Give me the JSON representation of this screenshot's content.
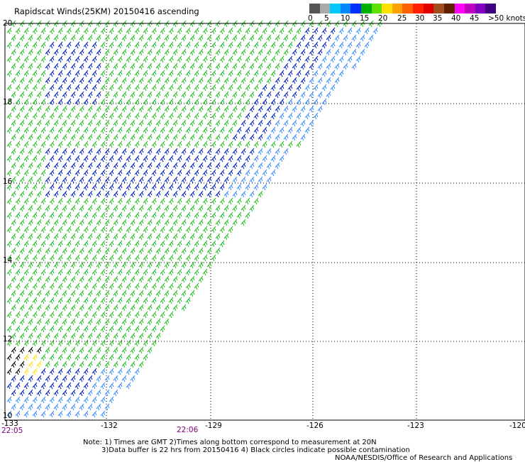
{
  "title": "Rapidscat Winds(25KM) 20150416 ascending",
  "colors": {
    "green": "#20c020",
    "blue": "#0020c0",
    "lightblue": "#3a8cff",
    "yellow": "#ffe000",
    "black": "#000000"
  },
  "color_scale": {
    "swatches": [
      "#555555",
      "#aaaaaa",
      "#00c8ff",
      "#0088ff",
      "#0030ff",
      "#00b000",
      "#60e000",
      "#ffe000",
      "#ffa000",
      "#ff6000",
      "#ff2000",
      "#e00000",
      "#a05020",
      "#602000",
      "#ff00ff",
      "#c000c0",
      "#8000c0",
      "#400080"
    ],
    "labels": [
      "0",
      "5",
      "10",
      "15",
      "20",
      "25",
      "30",
      "35",
      "40",
      "45",
      ">50 knots"
    ]
  },
  "axes": {
    "lat_labels": [
      "20",
      "18",
      "16",
      "14",
      "12",
      "10"
    ],
    "lon_labels": [
      "-133",
      "-132",
      "-129",
      "-126",
      "-123",
      "-120"
    ]
  },
  "times": {
    "left": "22:05",
    "middle": "22:06"
  },
  "notes": {
    "line1": "Note: 1) Times are GMT 2)Times along bottom correspond to measurement at 20N",
    "line2": "3)Data buffer is 22 hrs from 20150416 4) Black circles indicate possible contamination",
    "credit": "NOAA/NESDIS/Office of Research and Applications"
  }
}
